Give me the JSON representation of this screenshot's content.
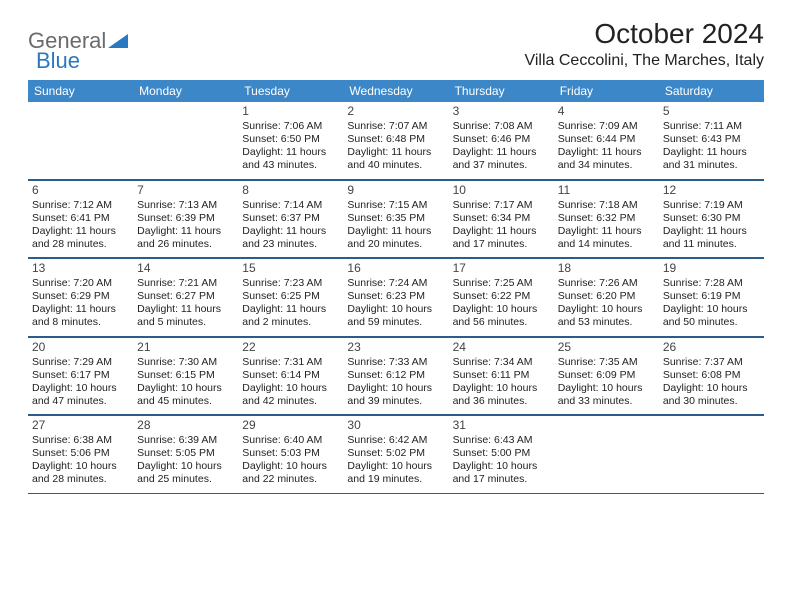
{
  "logo": {
    "text1": "General",
    "text2": "Blue",
    "accent_color": "#2a79c0"
  },
  "title": "October 2024",
  "location": "Villa Ceccolini, The Marches, Italy",
  "header_bg": "#3b87c8",
  "rule_color": "#2a5d8a",
  "daysOfWeek": [
    "Sunday",
    "Monday",
    "Tuesday",
    "Wednesday",
    "Thursday",
    "Friday",
    "Saturday"
  ],
  "weeks": [
    [
      null,
      null,
      {
        "n": "1",
        "sr": "7:06 AM",
        "ss": "6:50 PM",
        "dl": "11 hours and 43 minutes."
      },
      {
        "n": "2",
        "sr": "7:07 AM",
        "ss": "6:48 PM",
        "dl": "11 hours and 40 minutes."
      },
      {
        "n": "3",
        "sr": "7:08 AM",
        "ss": "6:46 PM",
        "dl": "11 hours and 37 minutes."
      },
      {
        "n": "4",
        "sr": "7:09 AM",
        "ss": "6:44 PM",
        "dl": "11 hours and 34 minutes."
      },
      {
        "n": "5",
        "sr": "7:11 AM",
        "ss": "6:43 PM",
        "dl": "11 hours and 31 minutes."
      }
    ],
    [
      {
        "n": "6",
        "sr": "7:12 AM",
        "ss": "6:41 PM",
        "dl": "11 hours and 28 minutes."
      },
      {
        "n": "7",
        "sr": "7:13 AM",
        "ss": "6:39 PM",
        "dl": "11 hours and 26 minutes."
      },
      {
        "n": "8",
        "sr": "7:14 AM",
        "ss": "6:37 PM",
        "dl": "11 hours and 23 minutes."
      },
      {
        "n": "9",
        "sr": "7:15 AM",
        "ss": "6:35 PM",
        "dl": "11 hours and 20 minutes."
      },
      {
        "n": "10",
        "sr": "7:17 AM",
        "ss": "6:34 PM",
        "dl": "11 hours and 17 minutes."
      },
      {
        "n": "11",
        "sr": "7:18 AM",
        "ss": "6:32 PM",
        "dl": "11 hours and 14 minutes."
      },
      {
        "n": "12",
        "sr": "7:19 AM",
        "ss": "6:30 PM",
        "dl": "11 hours and 11 minutes."
      }
    ],
    [
      {
        "n": "13",
        "sr": "7:20 AM",
        "ss": "6:29 PM",
        "dl": "11 hours and 8 minutes."
      },
      {
        "n": "14",
        "sr": "7:21 AM",
        "ss": "6:27 PM",
        "dl": "11 hours and 5 minutes."
      },
      {
        "n": "15",
        "sr": "7:23 AM",
        "ss": "6:25 PM",
        "dl": "11 hours and 2 minutes."
      },
      {
        "n": "16",
        "sr": "7:24 AM",
        "ss": "6:23 PM",
        "dl": "10 hours and 59 minutes."
      },
      {
        "n": "17",
        "sr": "7:25 AM",
        "ss": "6:22 PM",
        "dl": "10 hours and 56 minutes."
      },
      {
        "n": "18",
        "sr": "7:26 AM",
        "ss": "6:20 PM",
        "dl": "10 hours and 53 minutes."
      },
      {
        "n": "19",
        "sr": "7:28 AM",
        "ss": "6:19 PM",
        "dl": "10 hours and 50 minutes."
      }
    ],
    [
      {
        "n": "20",
        "sr": "7:29 AM",
        "ss": "6:17 PM",
        "dl": "10 hours and 47 minutes."
      },
      {
        "n": "21",
        "sr": "7:30 AM",
        "ss": "6:15 PM",
        "dl": "10 hours and 45 minutes."
      },
      {
        "n": "22",
        "sr": "7:31 AM",
        "ss": "6:14 PM",
        "dl": "10 hours and 42 minutes."
      },
      {
        "n": "23",
        "sr": "7:33 AM",
        "ss": "6:12 PM",
        "dl": "10 hours and 39 minutes."
      },
      {
        "n": "24",
        "sr": "7:34 AM",
        "ss": "6:11 PM",
        "dl": "10 hours and 36 minutes."
      },
      {
        "n": "25",
        "sr": "7:35 AM",
        "ss": "6:09 PM",
        "dl": "10 hours and 33 minutes."
      },
      {
        "n": "26",
        "sr": "7:37 AM",
        "ss": "6:08 PM",
        "dl": "10 hours and 30 minutes."
      }
    ],
    [
      {
        "n": "27",
        "sr": "6:38 AM",
        "ss": "5:06 PM",
        "dl": "10 hours and 28 minutes."
      },
      {
        "n": "28",
        "sr": "6:39 AM",
        "ss": "5:05 PM",
        "dl": "10 hours and 25 minutes."
      },
      {
        "n": "29",
        "sr": "6:40 AM",
        "ss": "5:03 PM",
        "dl": "10 hours and 22 minutes."
      },
      {
        "n": "30",
        "sr": "6:42 AM",
        "ss": "5:02 PM",
        "dl": "10 hours and 19 minutes."
      },
      {
        "n": "31",
        "sr": "6:43 AM",
        "ss": "5:00 PM",
        "dl": "10 hours and 17 minutes."
      },
      null,
      null
    ]
  ],
  "labels": {
    "sunrise": "Sunrise:",
    "sunset": "Sunset:",
    "daylight": "Daylight:"
  }
}
